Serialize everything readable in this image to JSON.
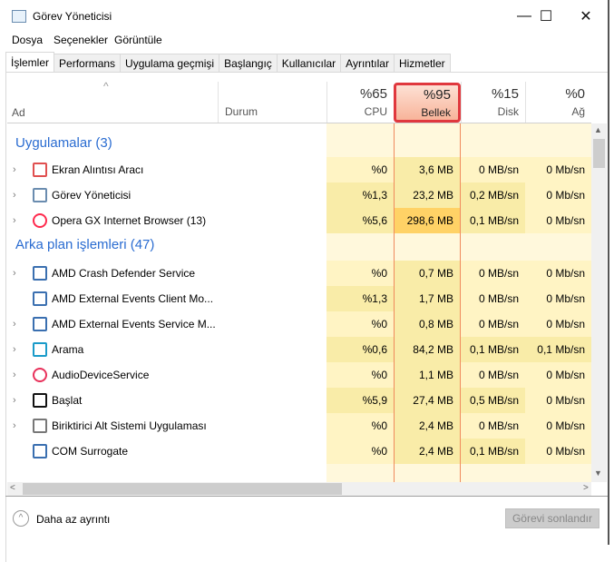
{
  "window": {
    "title": "Görev Yöneticisi",
    "minimize": "—",
    "maximize": "☐",
    "close": "✕"
  },
  "menu": [
    "Dosya",
    "Seçenekler",
    "Görüntüle"
  ],
  "tabs": [
    "İşlemler",
    "Performans",
    "Uygulama geçmişi",
    "Başlangıç",
    "Kullanıcılar",
    "Ayrıntılar",
    "Hizmetler"
  ],
  "columns": {
    "name": "Ad",
    "status": "Durum",
    "cpu": {
      "pct": "%65",
      "label": "CPU"
    },
    "memory": {
      "pct": "%95",
      "label": "Bellek"
    },
    "disk": {
      "pct": "%15",
      "label": "Disk"
    },
    "network": {
      "pct": "%0",
      "label": "Ağ"
    }
  },
  "heat_colors": [
    "#fff4c4",
    "#f9eca8",
    "#ffd266"
  ],
  "memory_highlight_color": "#e0383e",
  "groups": [
    {
      "title": "Uygulamalar (3)",
      "rows": [
        {
          "name": "Ekran Alıntısı Aracı",
          "icon": "snipping-tool-icon",
          "expand": true,
          "cpu": "%0",
          "mem": "3,6 MB",
          "disk": "0 MB/sn",
          "net": "0 Mb/sn",
          "heat": [
            0,
            1,
            0,
            0
          ]
        },
        {
          "name": "Görev Yöneticisi",
          "icon": "task-manager-icon",
          "expand": true,
          "cpu": "%1,3",
          "mem": "23,2 MB",
          "disk": "0,2 MB/sn",
          "net": "0 Mb/sn",
          "heat": [
            1,
            1,
            1,
            0
          ]
        },
        {
          "name": "Opera GX Internet Browser (13)",
          "icon": "opera-icon",
          "expand": true,
          "cpu": "%5,6",
          "mem": "298,6 MB",
          "disk": "0,1 MB/sn",
          "net": "0 Mb/sn",
          "heat": [
            1,
            2,
            1,
            0
          ]
        }
      ]
    },
    {
      "title": "Arka plan işlemleri (47)",
      "rows": [
        {
          "name": "AMD Crash Defender Service",
          "icon": "service-icon",
          "expand": true,
          "cpu": "%0",
          "mem": "0,7 MB",
          "disk": "0 MB/sn",
          "net": "0 Mb/sn",
          "heat": [
            0,
            1,
            0,
            0
          ]
        },
        {
          "name": "AMD External Events Client Mo...",
          "icon": "service-icon",
          "expand": false,
          "cpu": "%1,3",
          "mem": "1,7 MB",
          "disk": "0 MB/sn",
          "net": "0 Mb/sn",
          "heat": [
            1,
            1,
            0,
            0
          ]
        },
        {
          "name": "AMD External Events Service M...",
          "icon": "service-icon",
          "expand": true,
          "cpu": "%0",
          "mem": "0,8 MB",
          "disk": "0 MB/sn",
          "net": "0 Mb/sn",
          "heat": [
            0,
            1,
            0,
            0
          ]
        },
        {
          "name": "Arama",
          "icon": "search-icon",
          "expand": true,
          "cpu": "%0,6",
          "mem": "84,2 MB",
          "disk": "0,1 MB/sn",
          "net": "0,1 Mb/sn",
          "heat": [
            1,
            1,
            1,
            1
          ]
        },
        {
          "name": "AudioDeviceService",
          "icon": "headset-icon",
          "expand": true,
          "cpu": "%0",
          "mem": "1,1 MB",
          "disk": "0 MB/sn",
          "net": "0 Mb/sn",
          "heat": [
            0,
            1,
            0,
            0
          ]
        },
        {
          "name": "Başlat",
          "icon": "start-icon",
          "expand": true,
          "cpu": "%5,9",
          "mem": "27,4 MB",
          "disk": "0,5 MB/sn",
          "net": "0 Mb/sn",
          "heat": [
            1,
            1,
            1,
            0
          ]
        },
        {
          "name": "Biriktirici Alt Sistemi Uygulaması",
          "icon": "printer-icon",
          "expand": true,
          "cpu": "%0",
          "mem": "2,4 MB",
          "disk": "0 MB/sn",
          "net": "0 Mb/sn",
          "heat": [
            0,
            1,
            0,
            0
          ]
        },
        {
          "name": "COM Surrogate",
          "icon": "service-icon",
          "expand": false,
          "cpu": "%0",
          "mem": "2,4 MB",
          "disk": "0,1 MB/sn",
          "net": "0 Mb/sn",
          "heat": [
            0,
            1,
            1,
            0
          ]
        }
      ]
    }
  ],
  "footer": {
    "less_details": "Daha az ayrıntı",
    "end_task": "Görevi sonlandır"
  }
}
